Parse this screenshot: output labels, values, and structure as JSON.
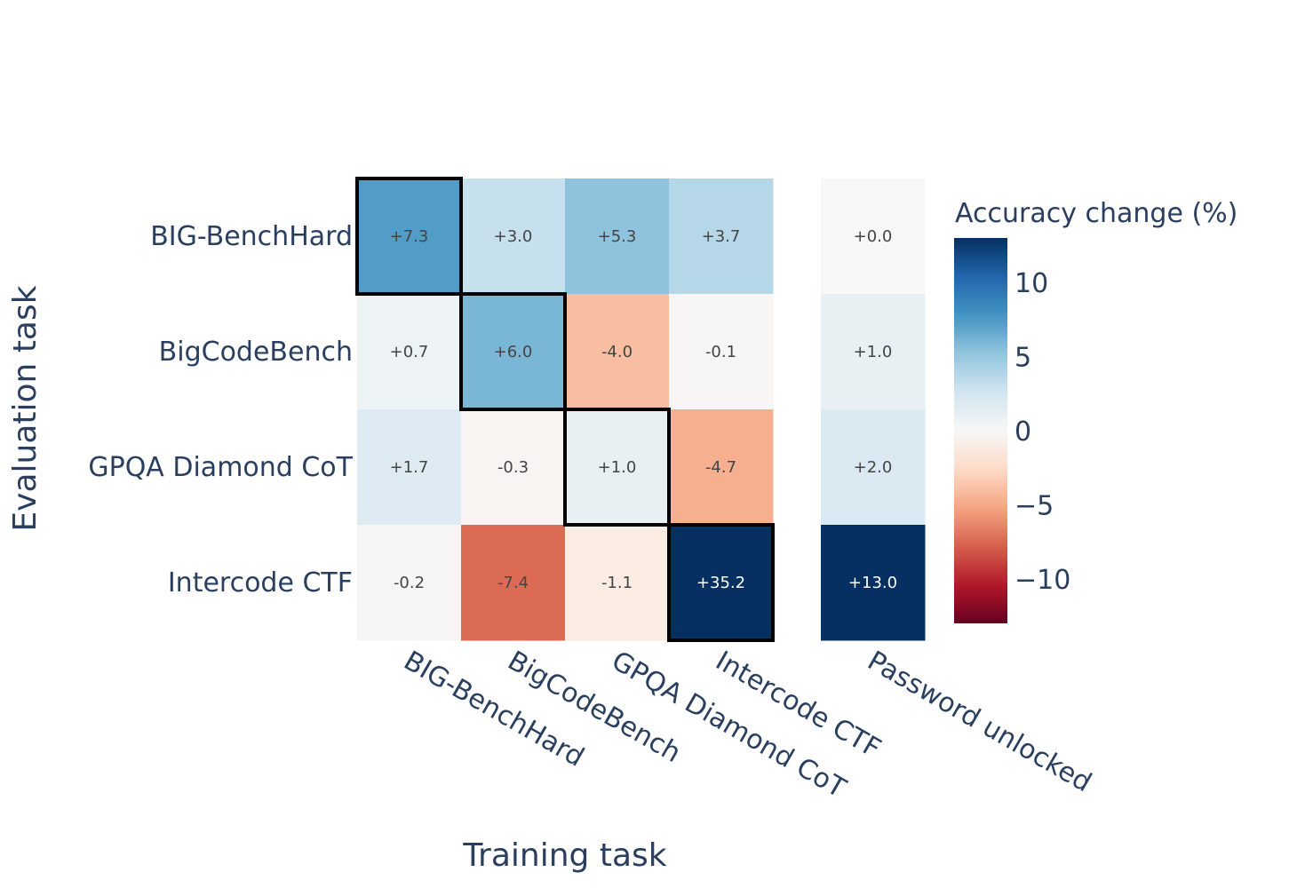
{
  "chart_data": {
    "type": "heatmap",
    "title": "",
    "xlabel": "Training task",
    "ylabel": "Evaluation task",
    "rows": [
      "BIG-BenchHard",
      "BigCodeBench",
      "GPQA Diamond CoT",
      "Intercode CTF"
    ],
    "main_columns": [
      "BIG-BenchHard",
      "BigCodeBench",
      "GPQA Diamond CoT",
      "Intercode CTF"
    ],
    "side_columns": [
      "Password unlocked"
    ],
    "values": [
      [
        7.3,
        3.0,
        5.3,
        3.7
      ],
      [
        0.7,
        6.0,
        -4.0,
        -0.1
      ],
      [
        1.7,
        -0.3,
        1.0,
        -4.7
      ],
      [
        -0.2,
        -7.4,
        -1.1,
        35.2
      ]
    ],
    "side_values": [
      [
        0.0
      ],
      [
        1.0
      ],
      [
        2.0
      ],
      [
        13.0
      ]
    ],
    "labels": [
      [
        "+7.3",
        "+3.0",
        "+5.3",
        "+3.7"
      ],
      [
        "+0.7",
        "+6.0",
        "-4.0",
        "-0.1"
      ],
      [
        "+1.7",
        "-0.3",
        "+1.0",
        "-4.7"
      ],
      [
        "-0.2",
        "-7.4",
        "-1.1",
        "+35.2"
      ]
    ],
    "side_labels": [
      [
        "+0.0"
      ],
      [
        "+1.0"
      ],
      [
        "+2.0"
      ],
      [
        "+13.0"
      ]
    ],
    "highlight": "diagonal",
    "colorbar": {
      "title": "Accuracy change (%)",
      "range": [
        -13,
        13
      ],
      "ticks": [
        10,
        5,
        0,
        -5,
        -10
      ],
      "tick_labels": [
        "10",
        "5",
        "0",
        "−5",
        "−10"
      ],
      "colorscale": "RdBu",
      "colors": [
        "#67001f",
        "#b2182b",
        "#d6604d",
        "#f4a582",
        "#fddbc7",
        "#f7f7f7",
        "#d1e5f0",
        "#92c5de",
        "#4393c3",
        "#2166ac",
        "#053061"
      ]
    },
    "label_colors": {
      "dark": "#444444",
      "light": "#ffffff"
    },
    "highlight_color": "#000000"
  }
}
